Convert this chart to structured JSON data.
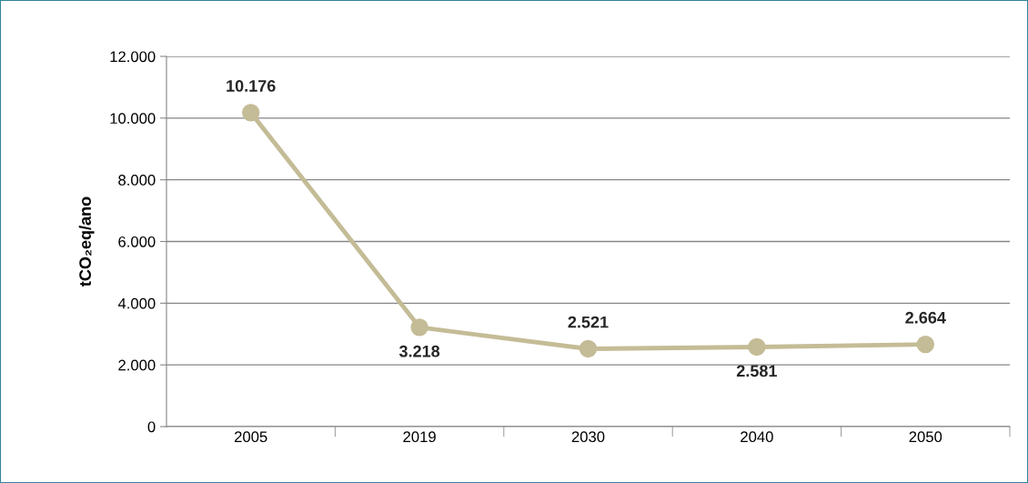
{
  "chart_data": {
    "type": "line",
    "ylabel": "tCO₂eq/ano",
    "categories": [
      "2005",
      "2019",
      "2030",
      "2040",
      "2050"
    ],
    "series": [
      {
        "color": "#c4bc96",
        "values": [
          10176,
          3218,
          2521,
          2581,
          2664
        ],
        "value_labels": [
          "10.176",
          "3.218",
          "2.521",
          "2.581",
          "2.664"
        ]
      }
    ],
    "ylim": [
      0,
      12000
    ],
    "yticks": [
      {
        "value": 0,
        "label": "0"
      },
      {
        "value": 2000,
        "label": "2.000"
      },
      {
        "value": 4000,
        "label": "4.000"
      },
      {
        "value": 6000,
        "label": "6.000"
      },
      {
        "value": 8000,
        "label": "8.000"
      },
      {
        "value": 10000,
        "label": "10.000"
      },
      {
        "value": 12000,
        "label": "12.000"
      }
    ],
    "grid": "y",
    "marker": "circle",
    "line_style": "solid"
  }
}
